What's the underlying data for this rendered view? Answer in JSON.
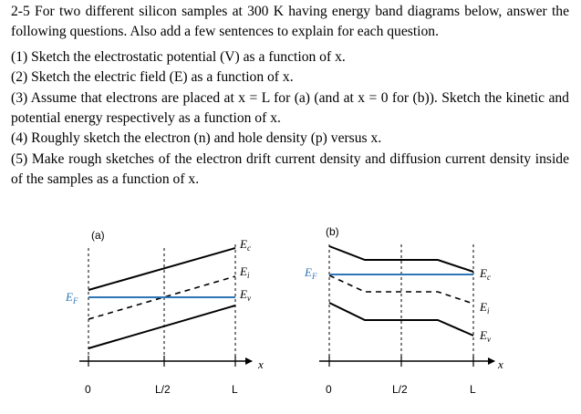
{
  "problem": {
    "intro": "2-5 For two different silicon samples at 300 K having energy band diagrams below, answer the following questions. Also add a few sentences to explain for each question.",
    "questions": [
      {
        "num": "(1)",
        "text": "Sketch the electrostatic potential (V) as a function of x."
      },
      {
        "num": "(2)",
        "text": "Sketch the electric field (E) as a function of x."
      },
      {
        "num": "(3)",
        "text": "Assume that electrons are placed at x = L for (a) (and at x = 0 for (b)). Sketch the kinetic and potential energy respectively as a function of x."
      },
      {
        "num": "(4)",
        "text": "Roughly sketch the electron (n) and hole density (p) versus x."
      },
      {
        "num": "(5)",
        "text": "Make rough sketches of the electron drift current density and diffusion current density inside of the samples as a function of x."
      }
    ]
  },
  "figures": {
    "a": {
      "label": "(a)",
      "band_labels": {
        "ec": "E",
        "ec_sub": "c",
        "ei": "E",
        "ei_sub": "i",
        "ev": "E",
        "ev_sub": "v"
      },
      "fermi_label": "E",
      "fermi_sub": "F",
      "x_axis_label": "x",
      "ticks": [
        "0",
        "L/2",
        "L"
      ]
    },
    "b": {
      "label": "(b)",
      "band_labels": {
        "ec": "E",
        "ec_sub": "c",
        "ei": "E",
        "ei_sub": "i",
        "ev": "E",
        "ev_sub": "v"
      },
      "fermi_label": "E",
      "fermi_sub": "F",
      "x_axis_label": "x",
      "ticks": [
        "0",
        "L/2",
        "L"
      ]
    }
  },
  "colors": {
    "fermi_line": "#2e75b6",
    "lines": "#000000"
  }
}
